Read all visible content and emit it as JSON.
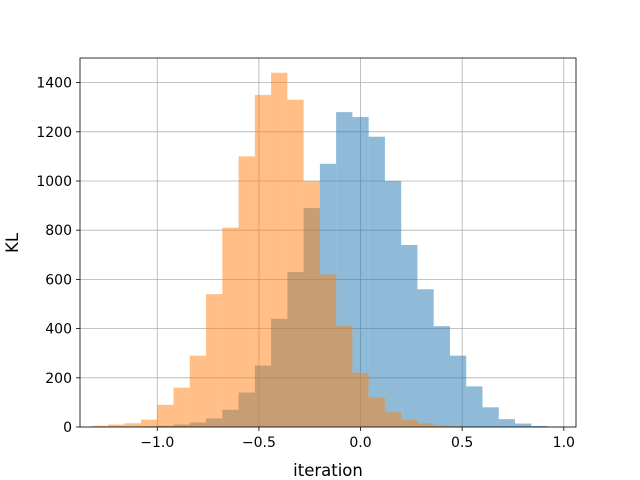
{
  "chart_data": {
    "type": "histogram",
    "title": "",
    "xlabel": "iteration",
    "ylabel": "KL",
    "xlim": [
      -1.38,
      1.06
    ],
    "ylim": [
      0,
      1500
    ],
    "xticks": [
      -1.0,
      -0.5,
      0.0,
      0.5,
      1.0
    ],
    "xtick_labels": [
      "−1.0",
      "−0.5",
      "0.0",
      "0.5",
      "1.0"
    ],
    "yticks": [
      0,
      200,
      400,
      600,
      800,
      1000,
      1200,
      1400
    ],
    "ytick_labels": [
      "0",
      "200",
      "400",
      "600",
      "800",
      "1000",
      "1200",
      "1400"
    ],
    "grid": true,
    "legend": "none",
    "series": [
      {
        "color": "#1f77b4",
        "opacity": 0.5,
        "bin_edges": [
          -1.16,
          -1.08,
          -1.0,
          -0.92,
          -0.84,
          -0.76,
          -0.68,
          -0.6,
          -0.52,
          -0.44,
          -0.36,
          -0.28,
          -0.2,
          -0.12,
          -0.04,
          0.04,
          0.12,
          0.2,
          0.28,
          0.36,
          0.44,
          0.52,
          0.6,
          0.68,
          0.76,
          0.84,
          0.92
        ],
        "counts": [
          2,
          3,
          5,
          10,
          18,
          35,
          70,
          140,
          250,
          440,
          630,
          890,
          1070,
          1280,
          1260,
          1180,
          1000,
          740,
          560,
          410,
          290,
          165,
          80,
          32,
          14,
          4
        ]
      },
      {
        "color": "#ff7f0e",
        "opacity": 0.5,
        "bin_edges": [
          -1.32,
          -1.24,
          -1.16,
          -1.08,
          -1.0,
          -0.92,
          -0.84,
          -0.76,
          -0.68,
          -0.6,
          -0.52,
          -0.44,
          -0.36,
          -0.28,
          -0.2,
          -0.12,
          -0.04,
          0.04,
          0.12,
          0.2,
          0.28,
          0.36,
          0.44,
          0.52
        ],
        "counts": [
          5,
          10,
          15,
          30,
          90,
          160,
          290,
          540,
          810,
          1100,
          1350,
          1440,
          1330,
          1000,
          620,
          410,
          220,
          120,
          60,
          30,
          15,
          6,
          3
        ]
      }
    ]
  }
}
